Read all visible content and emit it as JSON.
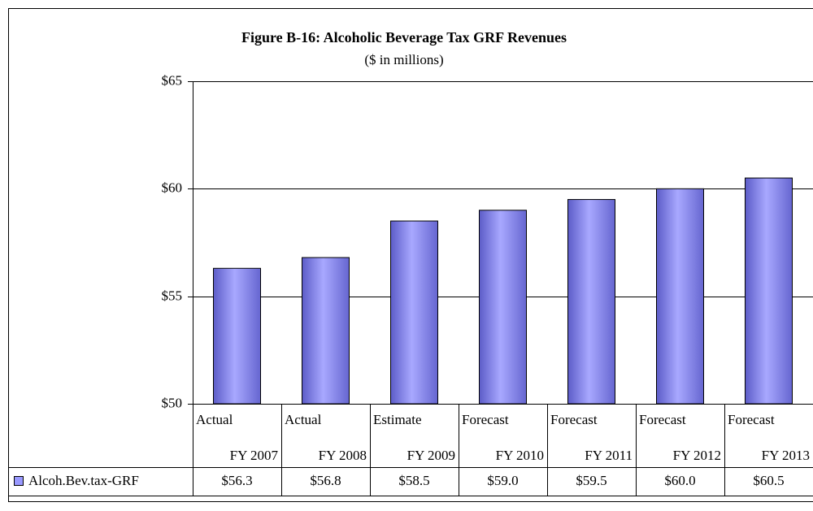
{
  "chart_data": {
    "type": "bar",
    "title": "Figure B-16: Alcoholic Beverage Tax  GRF Revenues",
    "subtitle": "($ in millions)",
    "categories": [
      [
        "Actual",
        "FY 2007"
      ],
      [
        "Actual",
        "FY 2008"
      ],
      [
        "Estimate",
        "FY 2009"
      ],
      [
        "Forecast",
        "FY 2010"
      ],
      [
        "Forecast",
        "FY 2011"
      ],
      [
        "Forecast",
        "FY 2012"
      ],
      [
        "Forecast",
        "FY 2013"
      ]
    ],
    "series": [
      {
        "name": "Alcoh.Bev.tax-GRF",
        "color": "#9999ff",
        "values": [
          56.3,
          56.8,
          58.5,
          59.0,
          59.5,
          60.0,
          60.5
        ],
        "value_labels": [
          "$56.3",
          "$56.8",
          "$58.5",
          "$59.0",
          "$59.5",
          "$60.0",
          "$60.5"
        ]
      }
    ],
    "ylim": [
      50,
      65
    ],
    "yticks": [
      {
        "value": 50,
        "label": "$50"
      },
      {
        "value": 55,
        "label": "$55"
      },
      {
        "value": 60,
        "label": "$60"
      },
      {
        "value": 65,
        "label": "$65"
      }
    ],
    "grid": true
  }
}
